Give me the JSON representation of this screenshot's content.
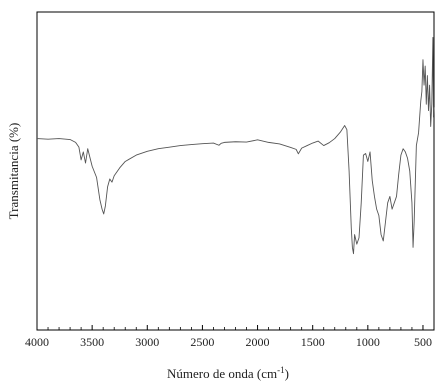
{
  "chart_data": {
    "type": "line",
    "title": "",
    "xlabel": "Número de onda (cm",
    "xlabel_sup": "-1",
    "xlabel_close": ")",
    "ylabel": "Transmitancia (%)",
    "xlim": [
      4000,
      400
    ],
    "x_reversed": true,
    "ylim": [
      0,
      100
    ],
    "y_ticks_shown": false,
    "x_ticks": [
      4000,
      3500,
      3000,
      2500,
      2000,
      1500,
      1000,
      500
    ],
    "grid": false,
    "legend": "none",
    "line_color": "#555555",
    "series": [
      {
        "x": [
          4000,
          3900,
          3800,
          3700,
          3650,
          3620,
          3600,
          3580,
          3560,
          3540,
          3500,
          3460,
          3430,
          3410,
          3395,
          3380,
          3360,
          3340,
          3320,
          3300,
          3250,
          3200,
          3100,
          3000,
          2900,
          2800,
          2700,
          2600,
          2500,
          2400,
          2350,
          2330,
          2300,
          2200,
          2100,
          2000,
          1900,
          1800,
          1700,
          1650,
          1630,
          1600,
          1550,
          1500,
          1450,
          1400,
          1350,
          1300,
          1250,
          1210,
          1190,
          1170,
          1150,
          1140,
          1130,
          1120,
          1100,
          1080,
          1060,
          1040,
          1020,
          1000,
          980,
          960,
          940,
          920,
          900,
          880,
          860,
          840,
          820,
          800,
          780,
          760,
          740,
          720,
          700,
          680,
          660,
          640,
          620,
          600,
          590,
          580,
          560,
          540,
          520,
          510,
          500,
          490,
          480,
          470,
          460,
          450,
          440,
          430,
          420,
          410,
          405,
          400
        ],
        "y": [
          60.2,
          60.0,
          60.2,
          59.9,
          59.0,
          57.5,
          53.5,
          56.0,
          52.5,
          57.0,
          51.5,
          48.0,
          41.0,
          38.0,
          36.5,
          39.0,
          45.0,
          47.5,
          46.5,
          48.5,
          51.0,
          53.0,
          55.0,
          56.2,
          57.0,
          57.5,
          58.0,
          58.3,
          58.6,
          58.8,
          58.1,
          58.7,
          59.0,
          59.2,
          59.1,
          59.8,
          59.0,
          58.5,
          57.4,
          56.8,
          55.4,
          57.2,
          58.0,
          58.8,
          59.4,
          58.0,
          58.9,
          60.2,
          62.2,
          64.3,
          63.0,
          50.0,
          32.0,
          26.0,
          24.0,
          30.0,
          27.0,
          29.0,
          40.0,
          55.0,
          55.5,
          53.0,
          56.0,
          47.0,
          42.0,
          38.0,
          36.0,
          30.0,
          28.0,
          34.0,
          40.0,
          42.0,
          38.0,
          40.0,
          42.0,
          49.0,
          55.0,
          57.0,
          56.0,
          54.0,
          50.0,
          40.0,
          26.0,
          34.0,
          58.0,
          62.0,
          72.0,
          75.0,
          85.0,
          77.0,
          83.0,
          71.0,
          80.0,
          69.0,
          77.0,
          64.0,
          71.0,
          92.0,
          67.0,
          70.0
        ]
      }
    ]
  }
}
